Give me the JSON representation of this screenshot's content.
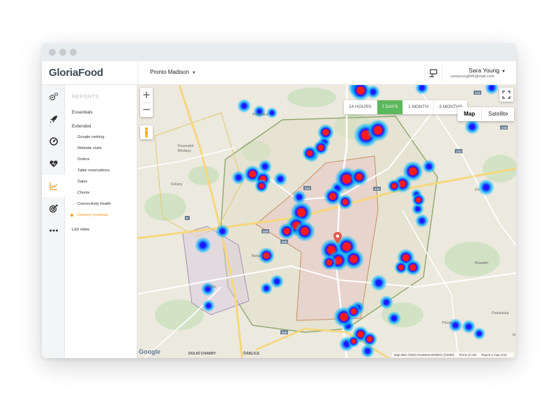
{
  "app": {
    "logo": "GloriaFood",
    "restaurant": "Pronto Madison",
    "user": {
      "name": "Sara Young",
      "email": "sarayoung646@mail.com"
    }
  },
  "rail": {
    "icons": [
      "gears-icon",
      "rocket-icon",
      "gauge-icon",
      "heart-icon",
      "chart-icon",
      "target-icon",
      "more-icon"
    ],
    "active_index": 4
  },
  "submenu": {
    "heading": "REPORTS",
    "essentials": "Essentials",
    "extended": "Extended",
    "children": [
      "Google ranking",
      "Website visits",
      "Orders",
      "Table reservations",
      "Sales",
      "Clients",
      "Connectivity health",
      "Delivery heatmap"
    ],
    "active_child": "Delivery heatmap",
    "list_view": "List view"
  },
  "map": {
    "range_tabs": [
      "24 HOURS",
      "7 DAYS",
      "1 MONTH",
      "3 MONTHS"
    ],
    "active_range": "7 DAYS",
    "map_types": [
      "Map",
      "Satellite"
    ],
    "selected_map_type": "Map",
    "zoom_in": "+",
    "zoom_out": "−",
    "google_logo": "Google",
    "attribution": [
      "Map data ©2020 GeoBasis-DE/BKG (©2009)",
      "Terms of Use",
      "Report a map error"
    ],
    "places": [
      "Přezletice",
      "Pavenské Břežany",
      "Kličany",
      "Bořanovice",
      "Brázdim",
      "Přezle",
      "Podolanka",
      "DOLNÍ CHABRY",
      "ĎÁBLICE",
      "Zdiby",
      "Po",
      "Je"
    ],
    "road_numbers": [
      "244",
      "243",
      "608",
      "608",
      "9",
      "243",
      "244",
      "245",
      "608"
    ],
    "colors": {
      "heat_core": "#ff1a1a",
      "heat_mid": "#1a1aff",
      "heat_outer": "#00b7ff",
      "accent": "#5cb85c",
      "active_menu": "#f59a23"
    }
  }
}
